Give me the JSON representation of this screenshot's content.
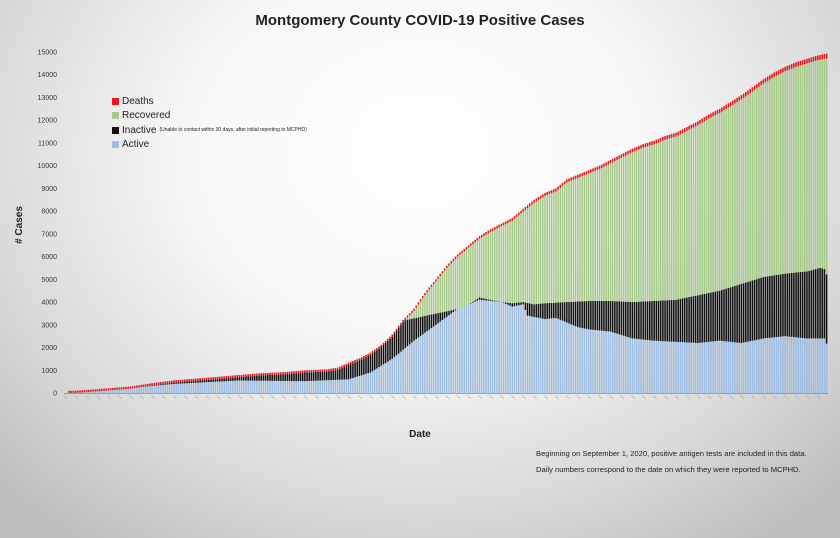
{
  "page": {
    "title": "Montgomery County COVID-19 Positive Cases",
    "note_line1": "Beginning on September 1, 2020, positive antigen tests are included in this data.",
    "note_line2": "Daily numbers correspond to the date on which they were reported to MCPHD."
  },
  "legend": {
    "deaths": "Deaths",
    "recovered": "Recovered",
    "inactive": "Inactive",
    "inactive_note": "(Unable to contact within 30 days, after initial reporting to MCPHD)",
    "active": "Active"
  },
  "colors": {
    "deaths": "#e8151b",
    "recovered": "#a6c98a",
    "inactive": "#111111",
    "active": "#9fbde0"
  },
  "chart_data": {
    "type": "bar",
    "stacked": true,
    "title": "Montgomery County COVID-19 Positive Cases",
    "xlabel": "Date",
    "ylabel": "# Cases",
    "ylim": [
      0,
      15000
    ],
    "yticks": [
      0,
      1000,
      2000,
      3000,
      4000,
      5000,
      6000,
      7000,
      8000,
      9000,
      10000,
      11000,
      12000,
      13000,
      14000,
      15000
    ],
    "grid": false,
    "legend_position": "top-left",
    "bar_count": 280,
    "x_tick_labels_legible": false,
    "series_order_bottom_to_top": [
      "Active",
      "Inactive",
      "Recovered",
      "Deaths"
    ],
    "series_anchors": {
      "total_cases": [
        [
          0,
          0
        ],
        [
          5,
          5
        ],
        [
          10,
          40
        ],
        [
          20,
          120
        ],
        [
          30,
          200
        ],
        [
          40,
          350
        ],
        [
          50,
          480
        ],
        [
          60,
          560
        ],
        [
          70,
          640
        ],
        [
          80,
          730
        ],
        [
          90,
          810
        ],
        [
          100,
          860
        ],
        [
          110,
          950
        ],
        [
          120,
          1000
        ],
        [
          125,
          1080
        ],
        [
          130,
          1300
        ],
        [
          135,
          1500
        ],
        [
          140,
          1750
        ],
        [
          145,
          2100
        ],
        [
          150,
          2550
        ],
        [
          155,
          3200
        ],
        [
          160,
          3700
        ],
        [
          165,
          4400
        ],
        [
          170,
          5000
        ],
        [
          175,
          5600
        ],
        [
          180,
          6100
        ],
        [
          185,
          6500
        ],
        [
          190,
          6900
        ],
        [
          195,
          7200
        ],
        [
          200,
          7450
        ],
        [
          205,
          7700
        ],
        [
          210,
          8100
        ],
        [
          215,
          8500
        ],
        [
          220,
          8800
        ],
        [
          225,
          9000
        ],
        [
          230,
          9400
        ],
        [
          235,
          9600
        ],
        [
          240,
          9800
        ],
        [
          245,
          10000
        ],
        [
          250,
          10250
        ],
        [
          255,
          10500
        ],
        [
          260,
          10750
        ],
        [
          265,
          10950
        ],
        [
          270,
          11100
        ],
        [
          275,
          11300
        ],
        [
          280,
          11450
        ],
        [
          285,
          11700
        ],
        [
          290,
          11950
        ],
        [
          295,
          12250
        ],
        [
          300,
          12500
        ],
        [
          305,
          12800
        ],
        [
          310,
          13100
        ],
        [
          315,
          13450
        ],
        [
          320,
          13800
        ],
        [
          325,
          14100
        ],
        [
          330,
          14350
        ],
        [
          335,
          14550
        ],
        [
          340,
          14700
        ],
        [
          345,
          14850
        ],
        [
          350,
          14950
        ]
      ],
      "deaths": [
        [
          0,
          0
        ],
        [
          100,
          40
        ],
        [
          150,
          80
        ],
        [
          200,
          120
        ],
        [
          250,
          150
        ],
        [
          300,
          180
        ],
        [
          350,
          210
        ]
      ],
      "active": [
        [
          0,
          0
        ],
        [
          10,
          40
        ],
        [
          50,
          400
        ],
        [
          80,
          550
        ],
        [
          110,
          520
        ],
        [
          130,
          600
        ],
        [
          140,
          900
        ],
        [
          150,
          1500
        ],
        [
          160,
          2300
        ],
        [
          170,
          3000
        ],
        [
          180,
          3700
        ],
        [
          190,
          4100
        ],
        [
          200,
          4000
        ],
        [
          205,
          3800
        ],
        [
          210,
          3900
        ],
        [
          212,
          3400
        ],
        [
          220,
          3250
        ],
        [
          225,
          3300
        ],
        [
          230,
          3100
        ],
        [
          235,
          2900
        ],
        [
          240,
          2800
        ],
        [
          250,
          2700
        ],
        [
          260,
          2400
        ],
        [
          270,
          2300
        ],
        [
          280,
          2250
        ],
        [
          290,
          2200
        ],
        [
          300,
          2300
        ],
        [
          310,
          2200
        ],
        [
          320,
          2400
        ],
        [
          330,
          2500
        ],
        [
          340,
          2400
        ],
        [
          348,
          2400
        ],
        [
          350,
          1950
        ]
      ],
      "inactive_top": [
        [
          0,
          0
        ],
        [
          180,
          3700
        ],
        [
          185,
          3900
        ],
        [
          190,
          4200
        ],
        [
          200,
          4000
        ],
        [
          205,
          3950
        ],
        [
          210,
          4000
        ],
        [
          215,
          3900
        ],
        [
          220,
          3950
        ],
        [
          230,
          4000
        ],
        [
          240,
          4050
        ],
        [
          250,
          4050
        ],
        [
          260,
          4000
        ],
        [
          270,
          4050
        ],
        [
          280,
          4100
        ],
        [
          290,
          4300
        ],
        [
          300,
          4500
        ],
        [
          310,
          4800
        ],
        [
          320,
          5100
        ],
        [
          330,
          5250
        ],
        [
          340,
          5350
        ],
        [
          346,
          5500
        ],
        [
          348,
          5450
        ],
        [
          350,
          5000
        ]
      ]
    }
  }
}
